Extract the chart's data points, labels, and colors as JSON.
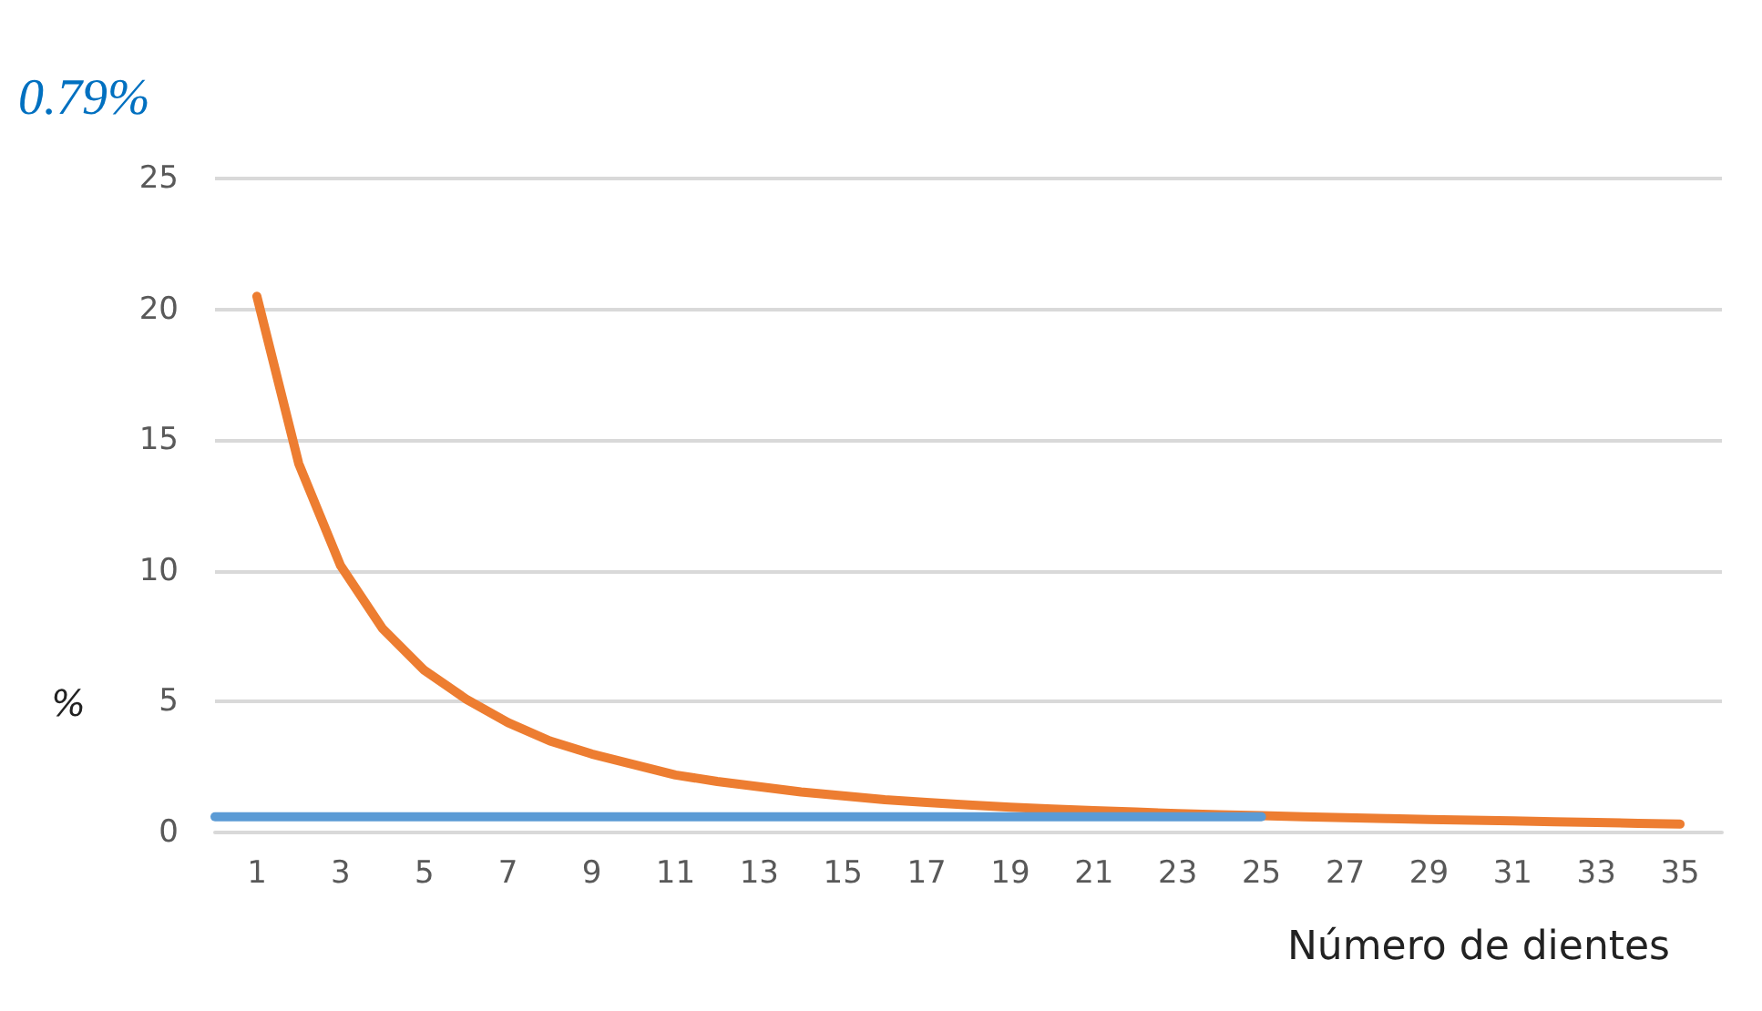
{
  "chart_data": {
    "type": "line",
    "xlabel": "Número de dientes",
    "ylabel": "%",
    "annotations": [
      "0.79%"
    ],
    "xlim": [
      0,
      36
    ],
    "xticks": [
      1,
      3,
      5,
      7,
      9,
      11,
      13,
      15,
      17,
      19,
      21,
      23,
      25,
      27,
      29,
      31,
      33,
      35
    ],
    "series": [
      {
        "color": "#ed7d31",
        "x": [
          1,
          2,
          3,
          4,
          5,
          6,
          7,
          8,
          9,
          10,
          11,
          12,
          13,
          14,
          15,
          16,
          17,
          18,
          19,
          20,
          21,
          22,
          23,
          24,
          25,
          26,
          27,
          28,
          29,
          30,
          31,
          32,
          33,
          34,
          35
        ],
        "values": [
          20.5,
          14.1,
          10.2,
          7.8,
          6.2,
          5.1,
          4.2,
          3.5,
          3.0,
          2.6,
          2.2,
          1.95,
          1.75,
          1.55,
          1.4,
          1.25,
          1.15,
          1.05,
          0.97,
          0.9,
          0.84,
          0.78,
          0.72,
          0.68,
          0.64,
          0.6,
          0.57,
          0.53,
          0.5,
          0.47,
          0.44,
          0.41,
          0.38,
          0.35,
          0.32
        ]
      },
      {
        "color": "#5b9bd5",
        "x": [
          0,
          25
        ],
        "values": [
          0.6,
          0.6
        ]
      }
    ],
    "ylim": [
      0,
      25
    ],
    "yticks": [
      0,
      5,
      10,
      15,
      20,
      25
    ],
    "grid": "y",
    "marker": "none",
    "line_style": "solid"
  }
}
